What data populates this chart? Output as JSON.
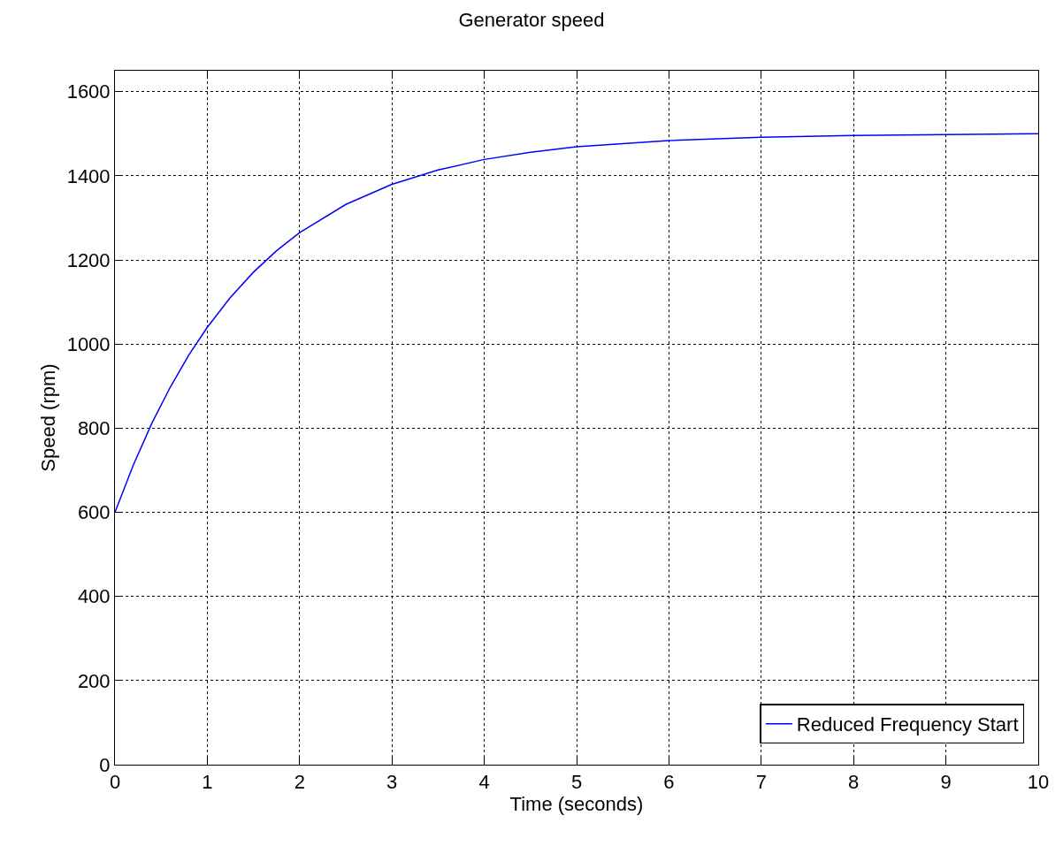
{
  "chart_data": {
    "type": "line",
    "title": "Generator speed",
    "xlabel": "Time (seconds)",
    "ylabel": "Speed (rpm)",
    "x": [
      0,
      0.2,
      0.4,
      0.6,
      0.8,
      1,
      1.25,
      1.5,
      1.75,
      2,
      2.5,
      3,
      3.5,
      4,
      4.5,
      5,
      6,
      7,
      8,
      9,
      10
    ],
    "series": [
      {
        "name": "Reduced Frequency Start",
        "color": "#0000ff",
        "values": [
          600,
          713,
          812,
          898,
          974,
          1040,
          1111,
          1171,
          1222,
          1265,
          1332,
          1380,
          1414,
          1439,
          1456,
          1469,
          1484,
          1492,
          1496,
          1498,
          1500
        ]
      }
    ],
    "xlim": [
      0,
      10
    ],
    "xticks": [
      0,
      1,
      2,
      3,
      4,
      5,
      6,
      7,
      8,
      9,
      10
    ],
    "ylim": [
      0,
      1650
    ],
    "yticks": [
      0,
      200,
      400,
      600,
      800,
      1000,
      1200,
      1400,
      1600
    ],
    "grid": true,
    "legend": "bottom right",
    "marker": "none",
    "line_style": "solid"
  }
}
